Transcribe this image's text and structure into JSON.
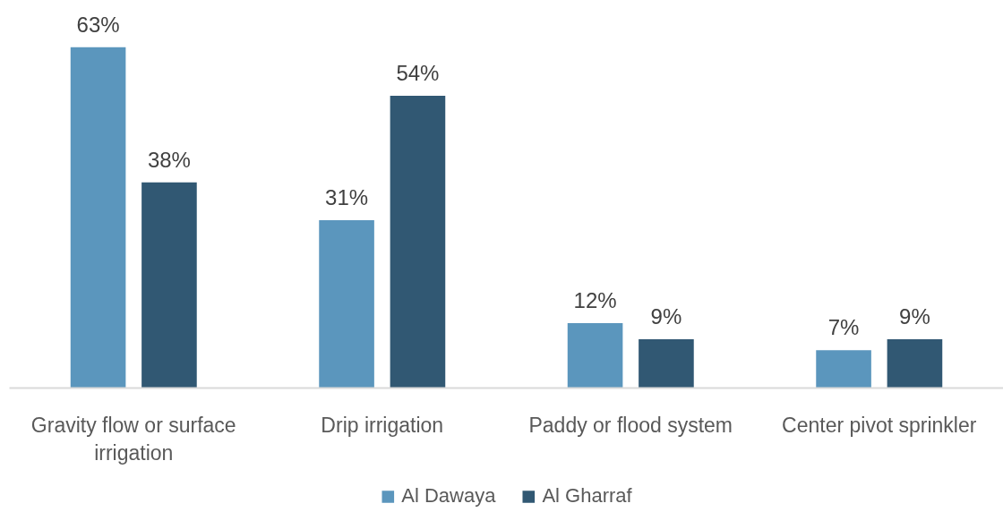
{
  "chart_data": {
    "type": "bar",
    "categories": [
      "Gravity flow or surface irrigation",
      "Drip irrigation",
      "Paddy or flood system",
      "Center pivot sprinkler"
    ],
    "series": [
      {
        "name": "Al Dawaya",
        "color": "#5b96bd",
        "values": [
          63,
          31,
          12,
          7
        ],
        "value_labels": [
          "63%",
          "31%",
          "12%",
          "7%"
        ]
      },
      {
        "name": "Al Gharraf",
        "color": "#315873",
        "values": [
          38,
          54,
          9,
          9
        ],
        "value_labels": [
          "38%",
          "54%",
          "9%",
          "9%"
        ]
      }
    ],
    "legend": "bottom"
  }
}
